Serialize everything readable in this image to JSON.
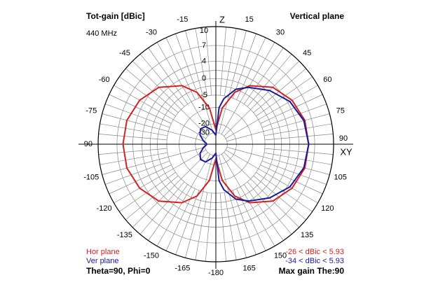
{
  "header": {
    "title": "Tot-gain [dBic]",
    "frequency": "440 MHz",
    "plane": "Vertical plane"
  },
  "footer": {
    "hor_label": "Hor plane",
    "ver_label": "Ver plane",
    "angles": "Theta=90, Phi=0",
    "hor_range": "-26 < dBic < 5.93",
    "ver_range": "-34 < dBic < 5.93",
    "max_gain": "Max gain The:90"
  },
  "colors": {
    "hor": "#d42020",
    "ver": "#1a1a9c",
    "grid": "#8a8a8a",
    "axis": "#000000"
  },
  "chart_data": {
    "type": "polar",
    "title": "Tot-gain [dBic]",
    "angle_unit": "degrees",
    "zero_direction": "top (Z)",
    "angle_labels": [
      "Z",
      "15",
      "30",
      "45",
      "60",
      "75",
      "90",
      "105",
      "120",
      "135",
      "150",
      "165",
      "-180",
      "-165",
      "-150",
      "-135",
      "-120",
      "-105",
      "-90",
      "-75",
      "-60",
      "-45",
      "-30",
      "-15"
    ],
    "radial_tick_labels": [
      "10",
      "7",
      "4",
      "0",
      "-5",
      "-10",
      "-20",
      "-30"
    ],
    "axis_label_right": "XY",
    "series": [
      {
        "name": "Hor plane",
        "color": "#d42020",
        "min_dBic": -26,
        "max_dBic": 5.93,
        "points": [
          [
            0,
            -26
          ],
          [
            10,
            -10
          ],
          [
            20,
            -3
          ],
          [
            30,
            0.5
          ],
          [
            45,
            3.5
          ],
          [
            60,
            5
          ],
          [
            75,
            5.8
          ],
          [
            90,
            5.93
          ],
          [
            105,
            5.8
          ],
          [
            120,
            5
          ],
          [
            135,
            3.5
          ],
          [
            150,
            0.5
          ],
          [
            160,
            -3
          ],
          [
            170,
            -10
          ],
          [
            180,
            -26
          ],
          [
            190,
            -10
          ],
          [
            200,
            -3
          ],
          [
            210,
            0.5
          ],
          [
            225,
            3.5
          ],
          [
            240,
            5
          ],
          [
            255,
            5.8
          ],
          [
            270,
            5.93
          ],
          [
            285,
            5.8
          ],
          [
            300,
            5
          ],
          [
            315,
            3.5
          ],
          [
            330,
            0.5
          ],
          [
            340,
            -3
          ],
          [
            350,
            -10
          ],
          [
            360,
            -26
          ]
        ]
      },
      {
        "name": "Ver plane",
        "color": "#1a1a9c",
        "min_dBic": -34,
        "max_dBic": 5.93,
        "points": [
          [
            0,
            -34
          ],
          [
            5,
            -10
          ],
          [
            10,
            -6
          ],
          [
            20,
            -2
          ],
          [
            30,
            0
          ],
          [
            45,
            2.5
          ],
          [
            60,
            4.5
          ],
          [
            75,
            5.6
          ],
          [
            90,
            5.93
          ],
          [
            105,
            5.6
          ],
          [
            120,
            4.5
          ],
          [
            135,
            2.5
          ],
          [
            150,
            0
          ],
          [
            160,
            -2
          ],
          [
            170,
            -6
          ],
          [
            175,
            -10
          ],
          [
            180,
            -34
          ],
          [
            195,
            -26
          ],
          [
            210,
            -20
          ],
          [
            225,
            -19
          ],
          [
            240,
            -22
          ],
          [
            255,
            -28
          ],
          [
            265,
            -33
          ],
          [
            270,
            -34
          ],
          [
            275,
            -33
          ],
          [
            285,
            -28
          ],
          [
            300,
            -22
          ],
          [
            315,
            -19
          ],
          [
            330,
            -20
          ],
          [
            345,
            -26
          ],
          [
            360,
            -34
          ]
        ]
      }
    ],
    "legend_position": "bottom-left",
    "max_gain_theta": 90
  }
}
